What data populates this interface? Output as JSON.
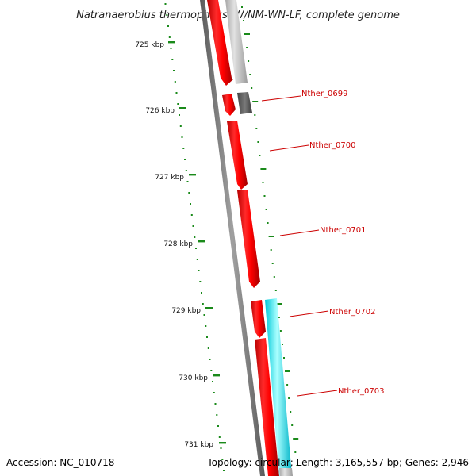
{
  "title": "Natranaerobius thermophilus JW/NM-WN-LF, complete genome",
  "footer": {
    "accession": "Accession: NC_010718",
    "topology": "Topology: circular; Length: 3,165,557 bp; Genes: 2,946"
  },
  "ticks": [
    {
      "kbp": 725,
      "label": "725 kbp"
    },
    {
      "kbp": 726,
      "label": "726 kbp"
    },
    {
      "kbp": 727,
      "label": "727 kbp"
    },
    {
      "kbp": 728,
      "label": "728 kbp"
    },
    {
      "kbp": 729,
      "label": "729 kbp"
    },
    {
      "kbp": 730,
      "label": "730 kbp"
    },
    {
      "kbp": 731,
      "label": "731 kbp"
    }
  ],
  "genes": [
    {
      "label": "Nther_0699"
    },
    {
      "label": "Nther_0700"
    },
    {
      "label": "Nther_0701"
    },
    {
      "label": "Nther_0702"
    },
    {
      "label": "Nther_0703"
    }
  ],
  "colors": {
    "cds_forward": "#ff0000",
    "cds_gray": "#c0c0c0",
    "cds_dark": "#666666",
    "cds_cyan": "#00ffff",
    "backbone": "#888888",
    "ticks": "#1a8a1a",
    "label": "#cc0000"
  }
}
